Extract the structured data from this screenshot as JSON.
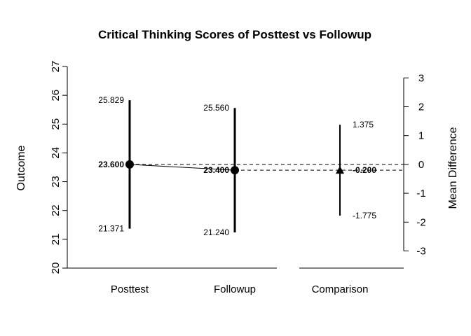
{
  "chart_data": {
    "type": "scatter",
    "title": "Critical Thinking Scores of Posttest vs Followup",
    "ylabel": "Outcome",
    "y2label": "Mean Difference",
    "ylim": [
      20,
      27
    ],
    "y2lim": [
      -3,
      3
    ],
    "yticks": [
      "20",
      "21",
      "22",
      "23",
      "24",
      "25",
      "26",
      "27"
    ],
    "y2ticks": [
      "-3",
      "-2",
      "-1",
      "0",
      "1",
      "2",
      "3"
    ],
    "categories": [
      "Posttest",
      "Followup",
      "Comparison"
    ],
    "means": [
      {
        "category": "Posttest",
        "mean": 23.6,
        "lower": 21.371,
        "upper": 25.829,
        "label_mean": "23.600",
        "label_lower": "21.371",
        "label_upper": "25.829"
      },
      {
        "category": "Followup",
        "mean": 23.4,
        "lower": 21.24,
        "upper": 25.56,
        "label_mean": "23.400",
        "label_lower": "21.240",
        "label_upper": "25.560"
      }
    ],
    "difference": {
      "category": "Comparison",
      "mean": -0.2,
      "lower": -1.775,
      "upper": 1.375,
      "label_mean": "-0.200",
      "label_lower": "-1.775",
      "label_upper": "1.375"
    },
    "grid": false
  }
}
